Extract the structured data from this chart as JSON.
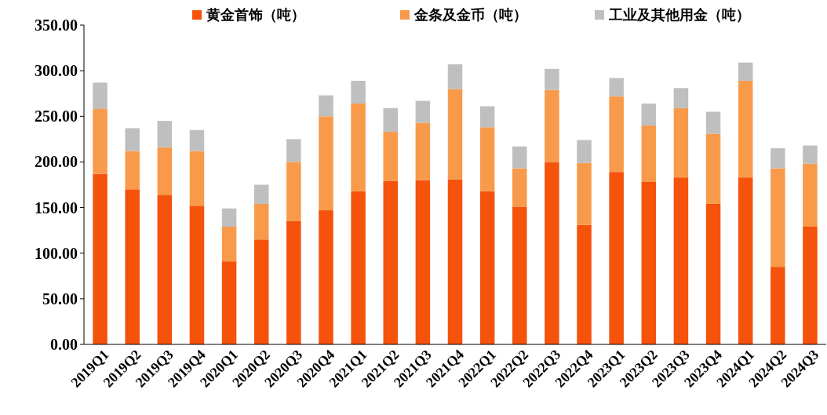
{
  "chart_data": {
    "type": "bar",
    "stacked": true,
    "legend": "top",
    "categories": [
      "2019Q1",
      "2019Q2",
      "2019Q3",
      "2019Q4",
      "2020Q1",
      "2020Q2",
      "2020Q3",
      "2020Q4",
      "2021Q1",
      "2021Q2",
      "2021Q3",
      "2021Q4",
      "2022Q1",
      "2022Q2",
      "2022Q3",
      "2022Q4",
      "2023Q1",
      "2023Q2",
      "2023Q3",
      "2023Q4",
      "2024Q1",
      "2024Q2",
      "2024Q3"
    ],
    "series": [
      {
        "name": "黄金首饰（吨）",
        "color": "#f5520c",
        "values": [
          187,
          170,
          164,
          152,
          91,
          115,
          135,
          147,
          168,
          179,
          180,
          181,
          168,
          151,
          200,
          131,
          189,
          178,
          183,
          154,
          183,
          85,
          129
        ]
      },
      {
        "name": "金条及金币（吨）",
        "color": "#f89a4a",
        "values": [
          71,
          42,
          52,
          60,
          38,
          39,
          65,
          103,
          96,
          54,
          63,
          99,
          70,
          42,
          79,
          68,
          83,
          62,
          76,
          77,
          106,
          108,
          69
        ]
      },
      {
        "name": "工业及其他用金（吨）",
        "color": "#bfbfbf",
        "values": [
          29,
          25,
          29,
          23,
          20,
          21,
          25,
          23,
          25,
          26,
          24,
          27,
          23,
          24,
          23,
          25,
          20,
          24,
          22,
          24,
          20,
          22,
          20
        ]
      }
    ],
    "ylim": [
      0,
      350
    ],
    "yticks": [
      {
        "value": 0,
        "label": "0.00"
      },
      {
        "value": 50,
        "label": "50.00"
      },
      {
        "value": 100,
        "label": "100.00"
      },
      {
        "value": 150,
        "label": "150.00"
      },
      {
        "value": 200,
        "label": "200.00"
      },
      {
        "value": 250,
        "label": "250.00"
      },
      {
        "value": 300,
        "label": "300.00"
      },
      {
        "value": 350,
        "label": "350.00"
      }
    ]
  }
}
